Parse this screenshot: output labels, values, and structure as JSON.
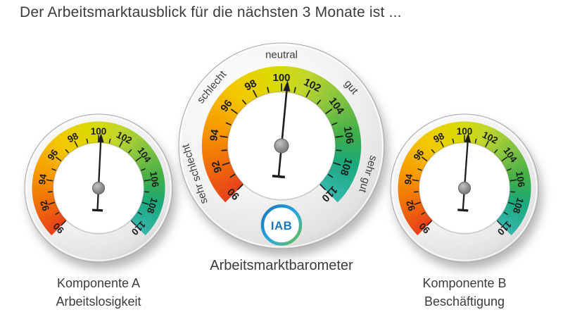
{
  "title": "Der Arbeitsmarktausblick für die nächsten 3 Monate ist ...",
  "chart_data": [
    {
      "type": "gauge",
      "id": "component-a",
      "caption_lines": [
        "Komponente A",
        "Arbeitslosigkeit"
      ],
      "min": 90,
      "max": 110,
      "tick_step": 1,
      "label_step": 2,
      "tick_labels": [
        90,
        92,
        94,
        96,
        98,
        100,
        102,
        104,
        106,
        108,
        110
      ],
      "value": 100.2
    },
    {
      "type": "gauge",
      "id": "barometer",
      "caption": "Arbeitsmarktbarometer",
      "min": 90,
      "max": 110,
      "tick_step": 1,
      "label_step": 2,
      "tick_labels": [
        90,
        92,
        94,
        96,
        98,
        100,
        102,
        104,
        106,
        108,
        110
      ],
      "value": 100.4,
      "sector_labels": [
        {
          "text": "sehr schlecht",
          "value": 92
        },
        {
          "text": "schlecht",
          "value": 96.3
        },
        {
          "text": "neutral",
          "value": 100
        },
        {
          "text": "gut",
          "value": 103.7
        },
        {
          "text": "sehr gut",
          "value": 108
        }
      ],
      "logo": "IAB"
    },
    {
      "type": "gauge",
      "id": "component-b",
      "caption_lines": [
        "Komponente B",
        "Beschäftigung"
      ],
      "min": 90,
      "max": 110,
      "tick_step": 1,
      "label_step": 2,
      "tick_labels": [
        90,
        92,
        94,
        96,
        98,
        100,
        102,
        104,
        106,
        108,
        110
      ],
      "value": 100.3
    }
  ],
  "colors": {
    "band_stops": [
      {
        "v": 90,
        "c": "#e8401c"
      },
      {
        "v": 92,
        "c": "#ef6a0a"
      },
      {
        "v": 94.5,
        "c": "#f79b00"
      },
      {
        "v": 97,
        "c": "#f3c800"
      },
      {
        "v": 99.5,
        "c": "#dada00"
      },
      {
        "v": 101.5,
        "c": "#c2d62c"
      },
      {
        "v": 104,
        "c": "#7dc142"
      },
      {
        "v": 106,
        "c": "#3fae49"
      },
      {
        "v": 107.8,
        "c": "#1ba97c"
      },
      {
        "v": 110,
        "c": "#35b7ac"
      }
    ],
    "needle": "#1d1d1b",
    "number_text": "#1d1d1b",
    "sector_text": "#3c3c3b",
    "title_text": "#3c3c3b",
    "logo_text": "#1b75bb",
    "logo_ring": [
      "#1b75bb",
      "#29a8df",
      "#72bf44"
    ]
  }
}
